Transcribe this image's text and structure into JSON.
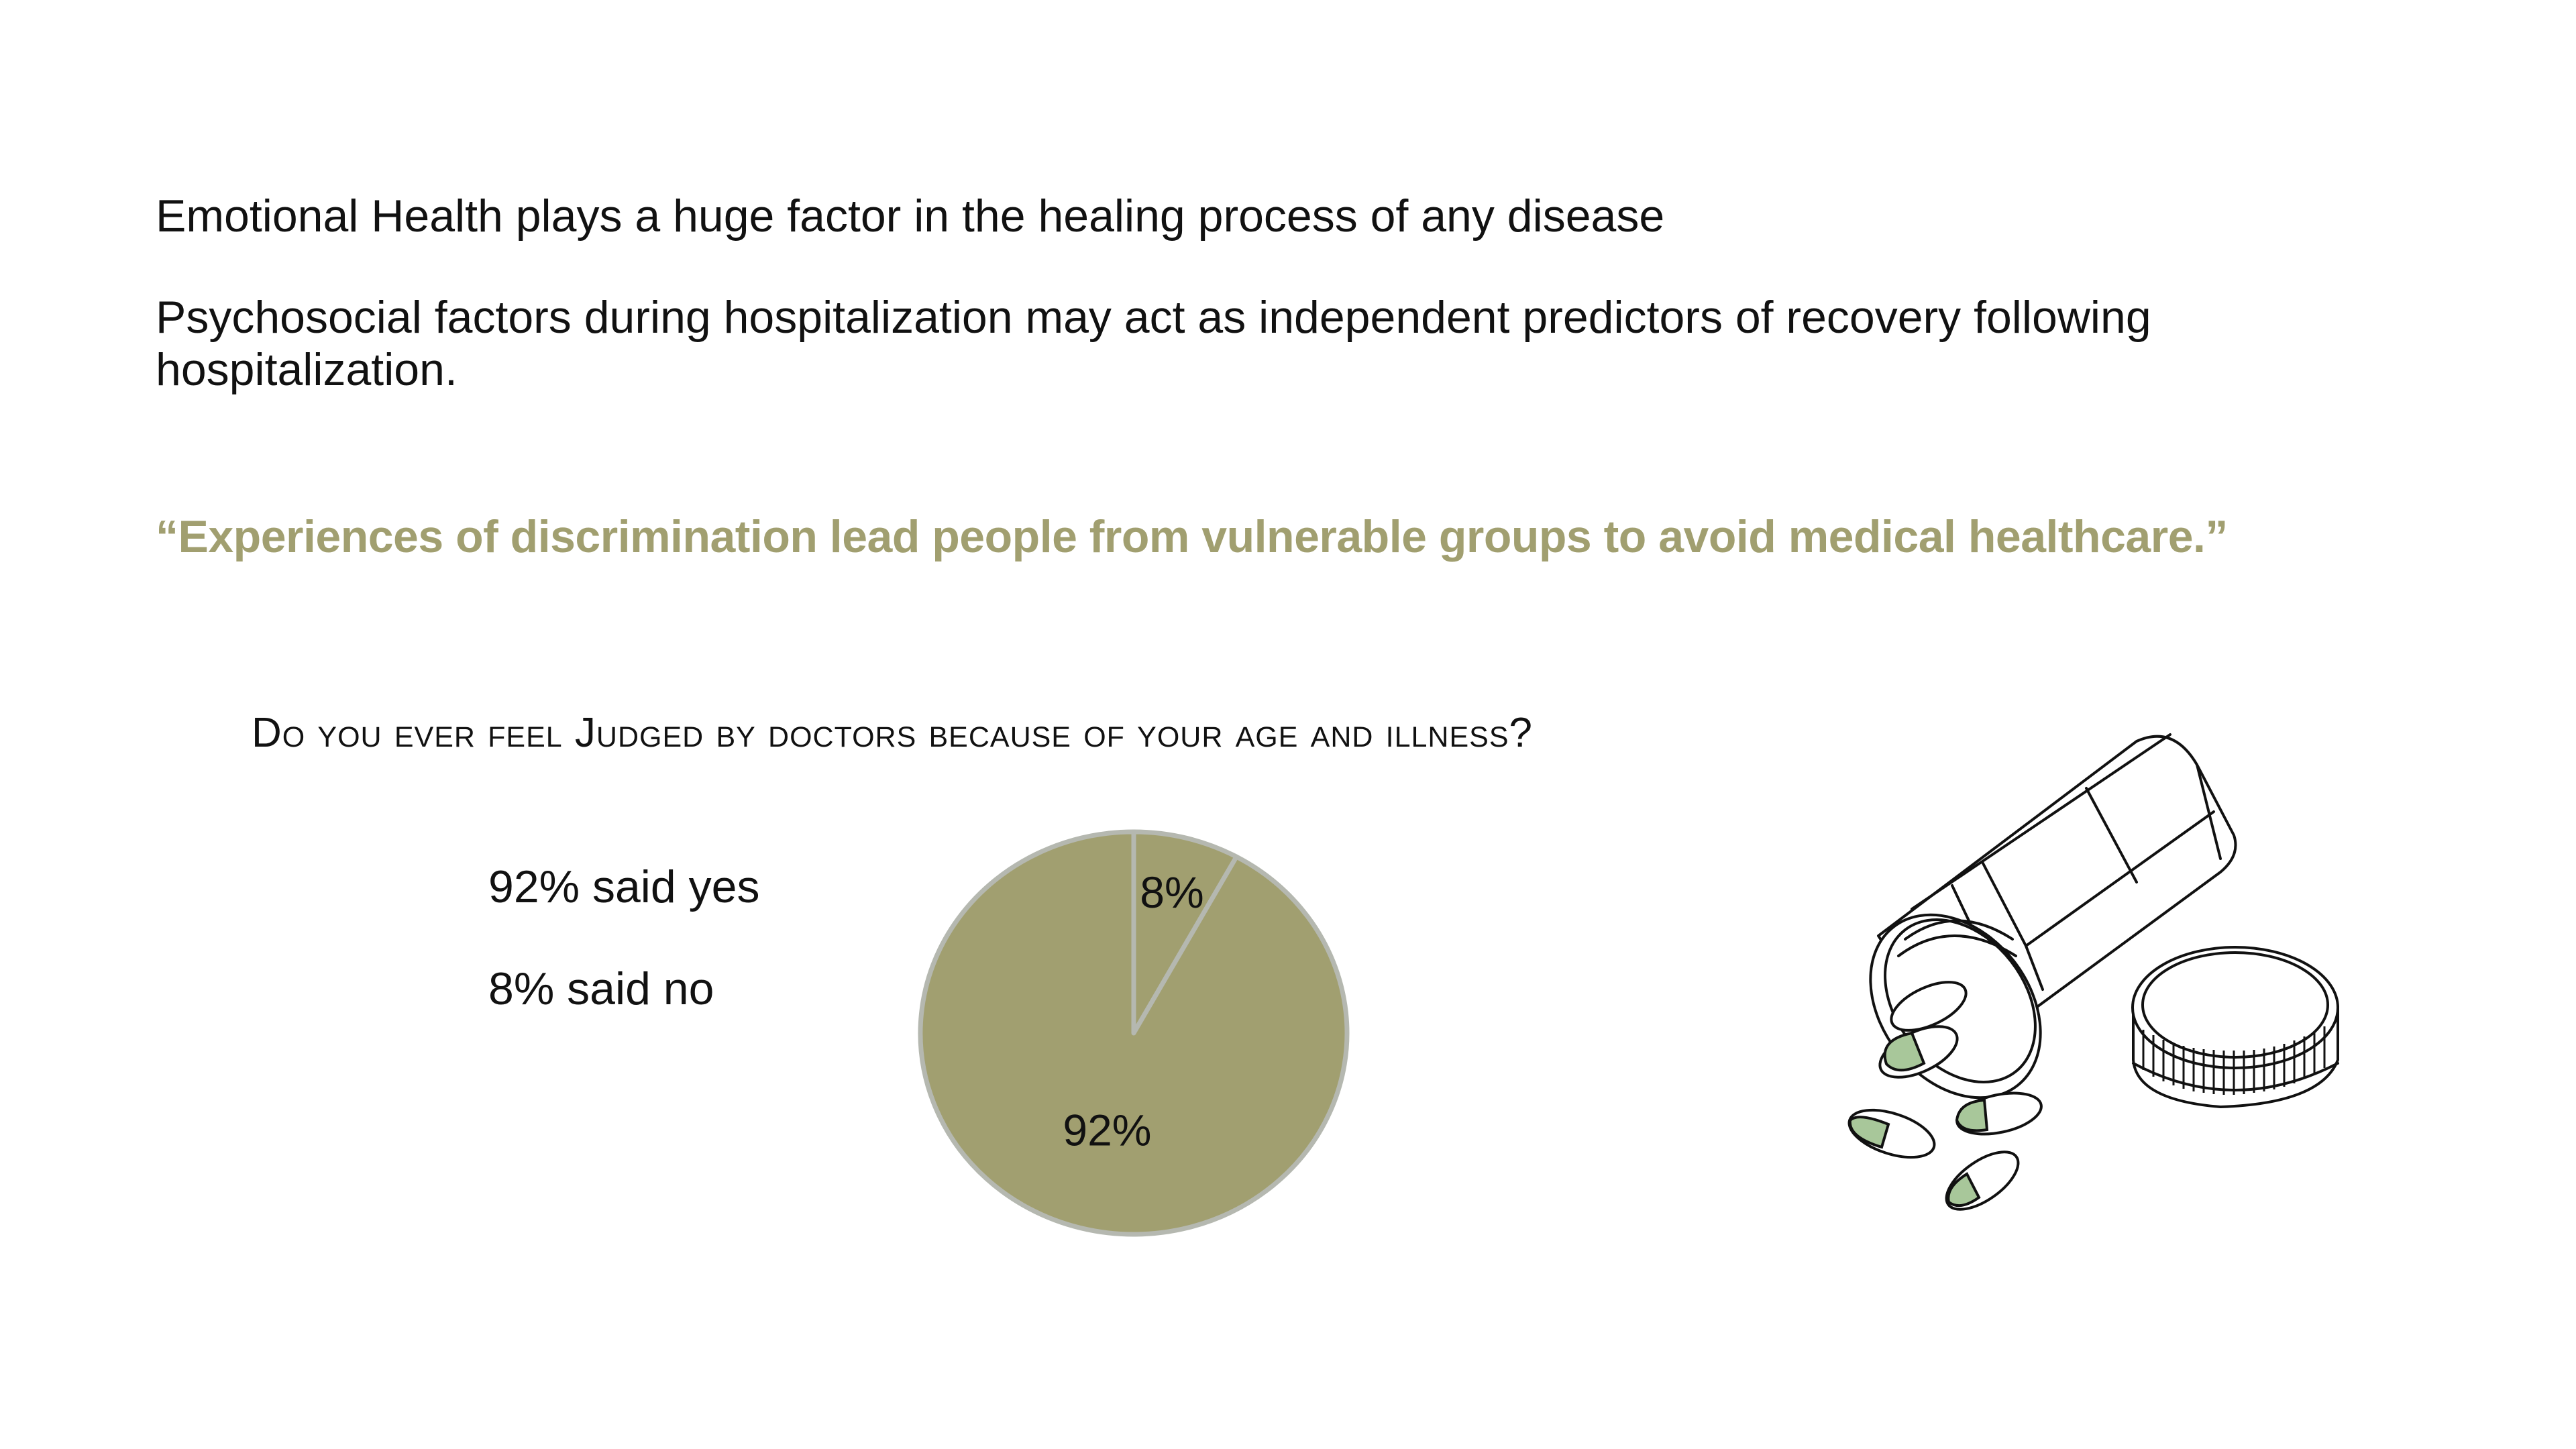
{
  "text": {
    "line1": "Emotional Health plays a huge factor in the healing process of any disease",
    "line2": "Psychosocial factors during hospitalization may act as independent predictors of recovery following hospitalization.",
    "quote": "“Experiences of discrimination lead people from vulnerable groups to avoid medical healthcare.”"
  },
  "legend": {
    "yes": "92% said yes",
    "no": "8% said no"
  },
  "chart_data": {
    "type": "pie",
    "title": "Do you ever feel Judged by doctors because of your age and illness?",
    "slices": [
      {
        "label": "8%",
        "value": 8,
        "color": "#a19f70"
      },
      {
        "label": "92%",
        "value": 92,
        "color": "#a19f70"
      }
    ],
    "border_color": "#b5b8b0",
    "legend": "none"
  },
  "colors": {
    "accent": "#a19f70",
    "capsule_green": "#a8c79a",
    "text": "#111111"
  },
  "illustration": {
    "icon": "pill-bottle-icon"
  }
}
